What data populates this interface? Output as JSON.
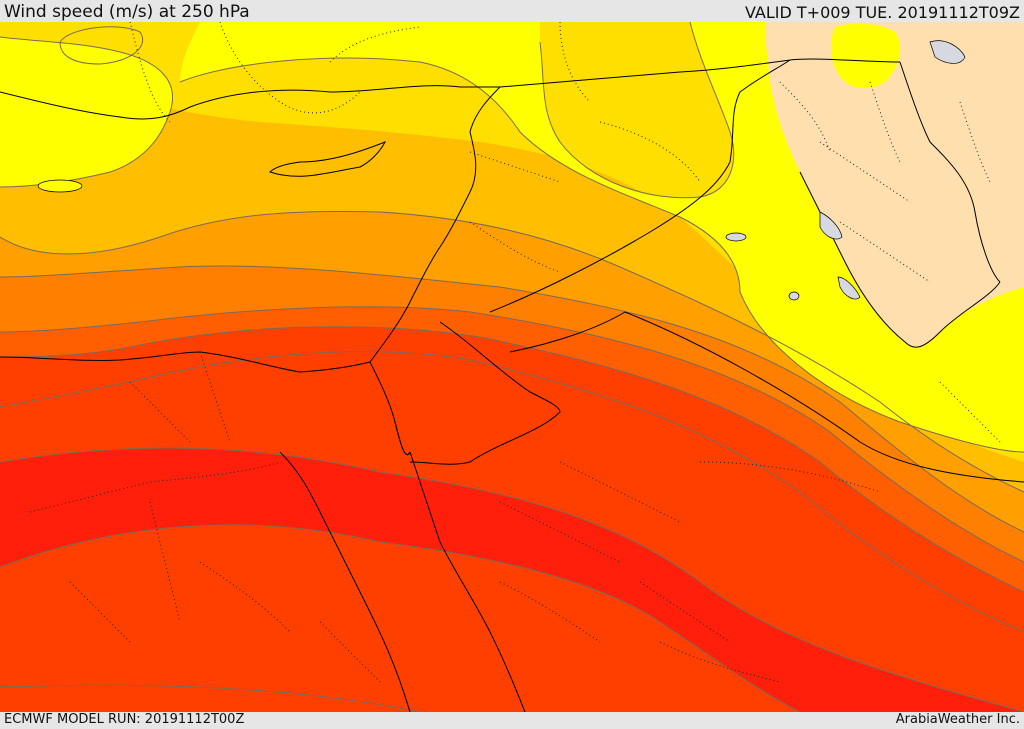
{
  "header": {
    "title": "Wind speed (m/s) at 250 hPa",
    "valid": "VALID T+009 TUE. 20191112T09Z"
  },
  "footer": {
    "model_run": "ECMWF MODEL RUN: 20191112T00Z",
    "credit": "ArabiaWeather Inc."
  },
  "map": {
    "field": "wind speed",
    "level_hpa": 250,
    "units": "m/s",
    "colors": {
      "land_outside_domain": "#ffdfae",
      "band_1_lightest": "#ffff00",
      "band_2": "#ffdf00",
      "band_3": "#ffbf00",
      "band_4": "#ff9f00",
      "band_5": "#ff7f00",
      "band_6": "#ff5f00",
      "band_7": "#ff3f00",
      "band_8_strongest": "#ff1f0a",
      "water_lakes": "#d8d8e0",
      "contour_line": "#7a6a5a",
      "borders": "#000000"
    }
  }
}
